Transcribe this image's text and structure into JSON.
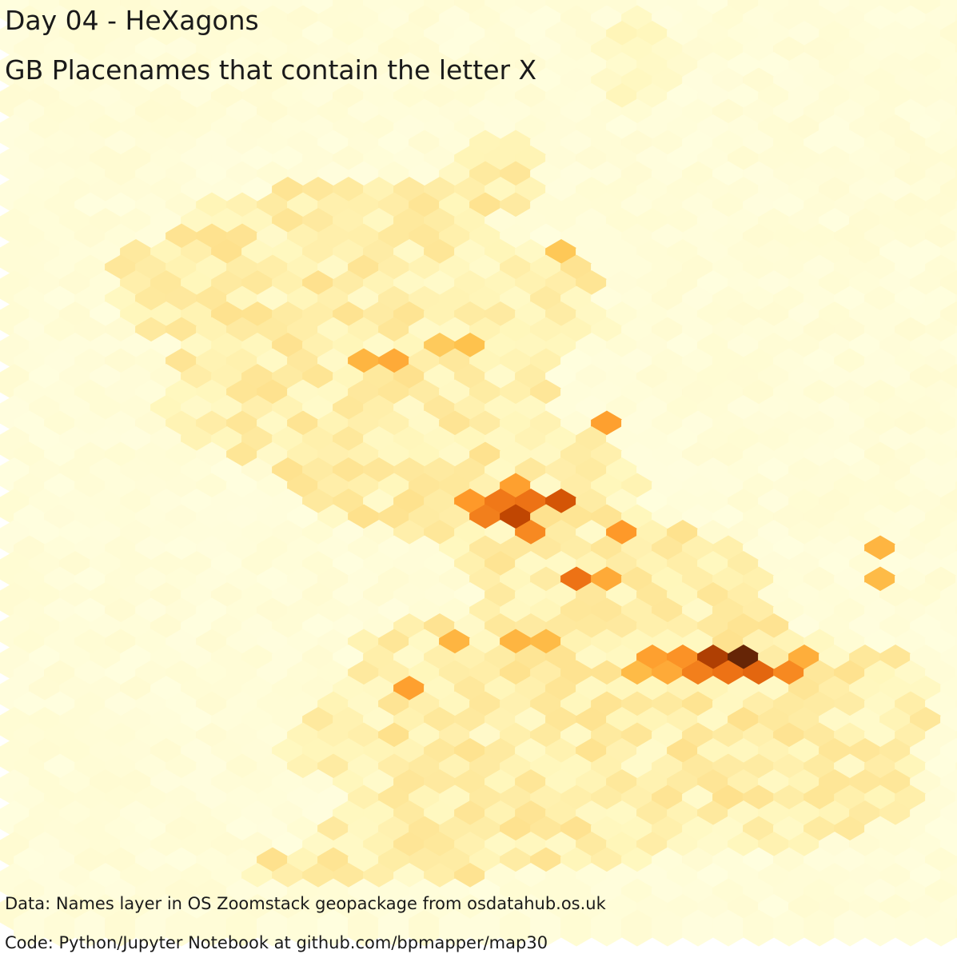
{
  "map": {
    "title": "Day 04 - HeXagons",
    "subtitle": "GB Placenames that contain the letter X",
    "credits": {
      "data": "Data: Names layer in OS Zoomstack geopackage from osdatahub.os.uk",
      "code": "Code: Python/Jupyter Notebook at github.com/bpmapper/map30"
    },
    "type": "hexbin",
    "colormap": "YlOrBr",
    "colors": {
      "empty": "#ffffe5",
      "low": "#fff7bc",
      "mid": "#fec44f",
      "high": "#ec7014",
      "max": "#662506"
    },
    "hex_counts": [
      {
        "col": 24,
        "row": 42,
        "level": 1.0
      },
      {
        "col": 23,
        "row": 42,
        "level": 0.82
      },
      {
        "col": 16,
        "row": 33,
        "level": 0.78
      },
      {
        "col": 18,
        "row": 32,
        "level": 0.72
      },
      {
        "col": 17,
        "row": 32,
        "level": 0.62
      },
      {
        "col": 16,
        "row": 32,
        "level": 0.6
      },
      {
        "col": 15,
        "row": 33,
        "level": 0.58
      },
      {
        "col": 17,
        "row": 34,
        "level": 0.55
      },
      {
        "col": 18,
        "row": 37,
        "level": 0.62
      },
      {
        "col": 24,
        "row": 43,
        "level": 0.66
      },
      {
        "col": 23,
        "row": 43,
        "level": 0.62
      },
      {
        "col": 22,
        "row": 43,
        "level": 0.58
      },
      {
        "col": 25,
        "row": 43,
        "level": 0.55
      },
      {
        "col": 22,
        "row": 42,
        "level": 0.52
      },
      {
        "col": 21,
        "row": 42,
        "level": 0.48
      },
      {
        "col": 16,
        "row": 31,
        "level": 0.48
      },
      {
        "col": 15,
        "row": 32,
        "level": 0.5
      },
      {
        "col": 19,
        "row": 27,
        "level": 0.48
      },
      {
        "col": 12,
        "row": 23,
        "level": 0.45
      },
      {
        "col": 11,
        "row": 23,
        "level": 0.42
      },
      {
        "col": 13,
        "row": 44,
        "level": 0.48
      },
      {
        "col": 20,
        "row": 34,
        "level": 0.5
      },
      {
        "col": 19,
        "row": 37,
        "level": 0.45
      },
      {
        "col": 28,
        "row": 35,
        "level": 0.42
      },
      {
        "col": 28,
        "row": 37,
        "level": 0.4
      },
      {
        "col": 14,
        "row": 41,
        "level": 0.42
      },
      {
        "col": 16,
        "row": 41,
        "level": 0.42
      },
      {
        "col": 26,
        "row": 42,
        "level": 0.44
      },
      {
        "col": 21,
        "row": 43,
        "level": 0.45
      },
      {
        "col": 20,
        "row": 43,
        "level": 0.4
      },
      {
        "col": 17,
        "row": 41,
        "level": 0.4
      },
      {
        "col": 18,
        "row": 16,
        "level": 0.36
      },
      {
        "col": 15,
        "row": 22,
        "level": 0.38
      },
      {
        "col": 14,
        "row": 22,
        "level": 0.35
      }
    ]
  }
}
